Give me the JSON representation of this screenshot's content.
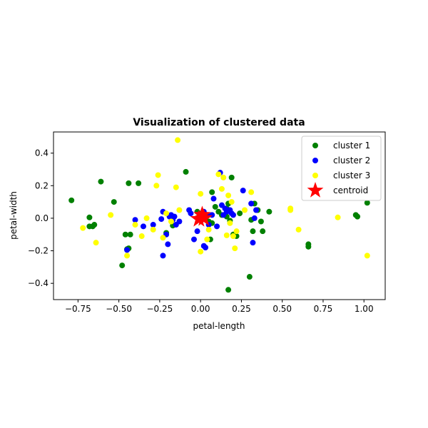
{
  "chart_data": {
    "type": "scatter",
    "title": "Visualization of clustered data",
    "xlabel": "petal-length",
    "ylabel": "petal-width",
    "xlim": [
      -0.9,
      1.13
    ],
    "ylim": [
      -0.5,
      0.53
    ],
    "xticks": [
      -0.75,
      -0.5,
      -0.25,
      0.0,
      0.25,
      0.5,
      0.75,
      1.0
    ],
    "xtick_labels": [
      "−0.75",
      "−0.50",
      "−0.25",
      "0.00",
      "0.25",
      "0.50",
      "0.75",
      "1.00"
    ],
    "yticks": [
      -0.4,
      -0.2,
      0.0,
      0.2,
      0.4
    ],
    "ytick_labels": [
      "−0.4",
      "−0.2",
      "0.0",
      "0.2",
      "0.4"
    ],
    "grid": false,
    "legend_position": "top-right",
    "series": [
      {
        "name": "cluster 1",
        "color": "#008000",
        "marker": "circle",
        "points": [
          [
            -0.79,
            0.11
          ],
          [
            -0.68,
            0.005
          ],
          [
            -0.68,
            -0.05
          ],
          [
            -0.65,
            -0.04
          ],
          [
            -0.66,
            -0.05
          ],
          [
            -0.61,
            0.225
          ],
          [
            -0.53,
            0.1
          ],
          [
            -0.46,
            -0.1
          ],
          [
            -0.44,
            0.215
          ],
          [
            -0.43,
            -0.1
          ],
          [
            -0.38,
            0.215
          ],
          [
            -0.48,
            -0.29
          ],
          [
            -0.45,
            -0.19
          ],
          [
            -0.44,
            -0.185
          ],
          [
            -0.21,
            -0.09
          ],
          [
            -0.17,
            -0.045
          ],
          [
            -0.09,
            0.285
          ],
          [
            -0.02,
            0.04
          ],
          [
            -0.01,
            0.03
          ],
          [
            0.03,
            0.0
          ],
          [
            0.05,
            -0.02
          ],
          [
            0.06,
            -0.13
          ],
          [
            0.07,
            -0.03
          ],
          [
            0.07,
            0.16
          ],
          [
            0.09,
            0.07
          ],
          [
            0.11,
            0.04
          ],
          [
            0.13,
            0.02
          ],
          [
            0.16,
            0.01
          ],
          [
            0.17,
            0.09
          ],
          [
            0.18,
            -0.015
          ],
          [
            0.19,
            0.25
          ],
          [
            0.2,
            -0.1
          ],
          [
            0.21,
            -0.1
          ],
          [
            0.22,
            -0.11
          ],
          [
            0.24,
            0.03
          ],
          [
            0.16,
            0.06
          ],
          [
            0.17,
            -0.44
          ],
          [
            0.3,
            -0.36
          ],
          [
            0.31,
            -0.01
          ],
          [
            0.32,
            -0.08
          ],
          [
            0.33,
            0.09
          ],
          [
            0.35,
            0.05
          ],
          [
            0.37,
            -0.02
          ],
          [
            0.38,
            -0.08
          ],
          [
            0.42,
            0.04
          ],
          [
            0.66,
            -0.16
          ],
          [
            0.66,
            -0.175
          ],
          [
            0.95,
            0.02
          ],
          [
            0.96,
            0.01
          ],
          [
            1.02,
            0.095
          ]
        ]
      },
      {
        "name": "cluster 2",
        "color": "#0000ff",
        "marker": "circle",
        "points": [
          [
            -0.45,
            -0.195
          ],
          [
            -0.4,
            -0.01
          ],
          [
            -0.35,
            -0.05
          ],
          [
            -0.29,
            -0.04
          ],
          [
            -0.24,
            -0.005
          ],
          [
            -0.23,
            0.04
          ],
          [
            -0.23,
            -0.23
          ],
          [
            -0.21,
            -0.1
          ],
          [
            -0.2,
            -0.16
          ],
          [
            -0.19,
            0.01
          ],
          [
            -0.18,
            0.02
          ],
          [
            -0.17,
            -0.01
          ],
          [
            -0.16,
            0.01
          ],
          [
            -0.15,
            -0.04
          ],
          [
            -0.13,
            -0.02
          ],
          [
            -0.07,
            0.05
          ],
          [
            -0.06,
            0.03
          ],
          [
            -0.04,
            -0.13
          ],
          [
            -0.02,
            -0.08
          ],
          [
            0.02,
            -0.17
          ],
          [
            0.02,
            0.04
          ],
          [
            0.03,
            -0.18
          ],
          [
            0.04,
            0.02
          ],
          [
            0.05,
            -0.04
          ],
          [
            0.07,
            0.02
          ],
          [
            0.08,
            0.12
          ],
          [
            0.1,
            -0.05
          ],
          [
            0.12,
            0.28
          ],
          [
            0.13,
            0.08
          ],
          [
            0.14,
            0.02
          ],
          [
            0.15,
            0.06
          ],
          [
            0.16,
            0.04
          ],
          [
            0.17,
            0.05
          ],
          [
            0.18,
            0.05
          ],
          [
            0.19,
            0.03
          ],
          [
            0.2,
            0.02
          ],
          [
            0.26,
            0.17
          ],
          [
            0.31,
            0.09
          ],
          [
            0.32,
            -0.15
          ],
          [
            0.33,
            0.0
          ],
          [
            0.34,
            0.05
          ]
        ]
      },
      {
        "name": "cluster 3",
        "color": "#ffff00",
        "marker": "circle",
        "points": [
          [
            -0.72,
            -0.06
          ],
          [
            -0.64,
            -0.15
          ],
          [
            -0.55,
            0.02
          ],
          [
            -0.45,
            -0.23
          ],
          [
            -0.4,
            -0.04
          ],
          [
            -0.36,
            -0.11
          ],
          [
            -0.33,
            0.0
          ],
          [
            -0.29,
            -0.07
          ],
          [
            -0.27,
            0.2
          ],
          [
            -0.26,
            0.265
          ],
          [
            -0.23,
            -0.12
          ],
          [
            -0.21,
            0.03
          ],
          [
            -0.18,
            -0.02
          ],
          [
            -0.15,
            0.19
          ],
          [
            -0.14,
            0.48
          ],
          [
            -0.13,
            0.05
          ],
          [
            0.0,
            0.15
          ],
          [
            0.0,
            -0.205
          ],
          [
            0.04,
            -0.13
          ],
          [
            0.05,
            -0.07
          ],
          [
            0.11,
            0.27
          ],
          [
            0.13,
            0.18
          ],
          [
            0.14,
            0.25
          ],
          [
            0.16,
            -0.105
          ],
          [
            0.17,
            0.14
          ],
          [
            0.18,
            -0.03
          ],
          [
            0.19,
            0.1
          ],
          [
            0.2,
            -0.11
          ],
          [
            0.21,
            -0.185
          ],
          [
            0.22,
            -0.08
          ],
          [
            0.27,
            0.05
          ],
          [
            0.31,
            0.16
          ],
          [
            0.55,
            0.06
          ],
          [
            0.55,
            0.05
          ],
          [
            0.6,
            -0.07
          ],
          [
            0.84,
            0.005
          ],
          [
            1.02,
            -0.23
          ]
        ]
      },
      {
        "name": "centroid",
        "color": "#ff0000",
        "marker": "star",
        "points": [
          [
            -0.01,
            -0.005
          ],
          [
            0.01,
            0.02
          ],
          [
            0.02,
            0.0
          ]
        ]
      }
    ]
  }
}
